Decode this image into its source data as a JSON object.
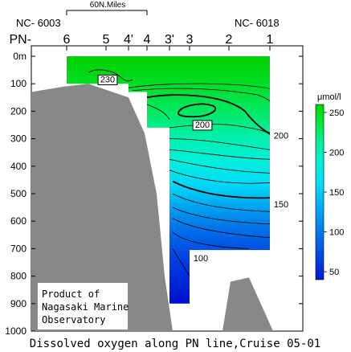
{
  "chart_data": {
    "type": "heatmap",
    "title": "Dissolved oxygen along PN line,Cruise 05-01",
    "scale_label": "60N.Miles",
    "station_ids": {
      "left": "NC- 6003",
      "right": "NC- 6018"
    },
    "line_prefix": "PN-",
    "stations": [
      "6",
      "5",
      "4'",
      "4",
      "3'",
      "3",
      "2",
      "1"
    ],
    "depth_ticks": [
      "0m",
      "100",
      "200",
      "300",
      "400",
      "500",
      "600",
      "700",
      "800",
      "900",
      "1000"
    ],
    "ylim": [
      0,
      1000
    ],
    "colorbar": {
      "unit": "μmol/l",
      "ticks": [
        "250",
        "200",
        "150",
        "100",
        "50"
      ],
      "range": [
        40,
        260
      ],
      "colors": [
        "#00d800",
        "#00e840",
        "#00f0a0",
        "#00f0d8",
        "#00e0f8",
        "#00b8f8",
        "#0090f0",
        "#0068e8",
        "#0040e0",
        "#0018d0"
      ]
    },
    "contour_labels": [
      "230",
      "200",
      "200",
      "150",
      "100"
    ],
    "credit": [
      "Product of",
      "Nagasaki Marine",
      "Observatory"
    ]
  }
}
